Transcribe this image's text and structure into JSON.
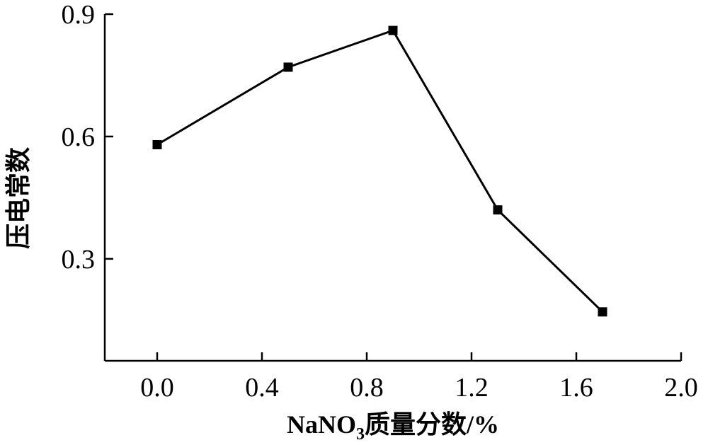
{
  "chart_data": {
    "type": "line",
    "title": "",
    "xlabel": {
      "prefix": "NaNO",
      "subscript": "3",
      "suffix": "质量分数/%"
    },
    "ylabel": "压电常数",
    "xlim": [
      -0.2,
      2.0
    ],
    "ylim": [
      0.05,
      0.9
    ],
    "x_ticks": [
      {
        "value": 0.0,
        "label": "0.0"
      },
      {
        "value": 0.4,
        "label": "0.4"
      },
      {
        "value": 0.8,
        "label": "0.8"
      },
      {
        "value": 1.2,
        "label": "1.2"
      },
      {
        "value": 1.6,
        "label": "1.6"
      },
      {
        "value": 2.0,
        "label": "2.0"
      }
    ],
    "y_ticks": [
      {
        "value": 0.3,
        "label": "0.3"
      },
      {
        "value": 0.6,
        "label": "0.6"
      },
      {
        "value": 0.9,
        "label": "0.9"
      }
    ],
    "grid": false,
    "series": [
      {
        "marker": "square",
        "color": "#000000",
        "points": [
          {
            "x": 0.0,
            "y": 0.58
          },
          {
            "x": 0.5,
            "y": 0.77
          },
          {
            "x": 0.9,
            "y": 0.86
          },
          {
            "x": 1.3,
            "y": 0.42
          },
          {
            "x": 1.7,
            "y": 0.17
          }
        ]
      }
    ]
  }
}
